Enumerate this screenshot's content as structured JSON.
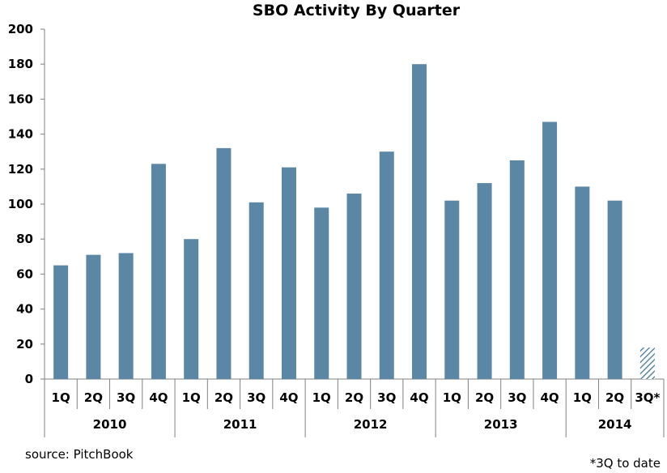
{
  "chart_data": {
    "type": "bar",
    "title": "SBO Activity  By Quarter",
    "categories": [
      "1Q",
      "2Q",
      "3Q",
      "4Q",
      "1Q",
      "2Q",
      "3Q",
      "4Q",
      "1Q",
      "2Q",
      "3Q",
      "4Q",
      "1Q",
      "2Q",
      "3Q",
      "4Q",
      "1Q",
      "2Q",
      "3Q*"
    ],
    "groups": [
      {
        "label": "2010",
        "count": 4
      },
      {
        "label": "2011",
        "count": 4
      },
      {
        "label": "2012",
        "count": 4
      },
      {
        "label": "2013",
        "count": 4
      },
      {
        "label": "2014",
        "count": 3
      }
    ],
    "values": [
      65,
      71,
      72,
      123,
      80,
      132,
      101,
      121,
      98,
      106,
      130,
      180,
      102,
      112,
      125,
      147,
      110,
      102,
      18
    ],
    "partial_last": true,
    "ylim": [
      0,
      200
    ],
    "yticks": [
      0,
      20,
      40,
      60,
      80,
      100,
      120,
      140,
      160,
      180,
      200
    ],
    "grid": false,
    "bar_color": "#5b87a4"
  },
  "source": "source: PitchBook",
  "footnote": "*3Q to date"
}
